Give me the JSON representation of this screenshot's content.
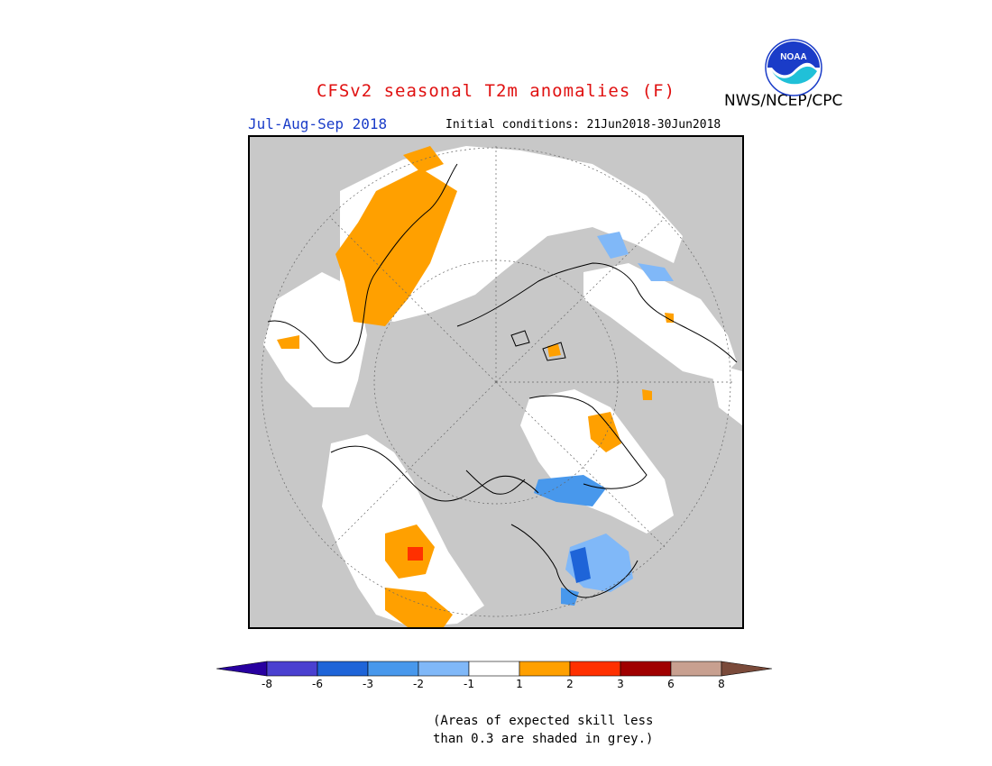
{
  "header": {
    "title": "CFSv2 seasonal T2m anomalies (F)",
    "period": "Jul-Aug-Sep 2018",
    "initial_conditions": "Initial conditions: 21Jun2018-30Jun2018",
    "agency": "NWS/NCEP/CPC",
    "logo_text": "NOAA"
  },
  "colors": {
    "skill_grey": "#c8c8c8",
    "neutral_white": "#ffffff",
    "warm_1_2": "#ffa000",
    "warm_2_3": "#ff3000",
    "cool_1_2": "#80b8f8",
    "cool_2_3": "#4898ec"
  },
  "legend": {
    "bins": [
      {
        "label": "-8",
        "color": "#2800a0"
      },
      {
        "label": "-6",
        "color": "#4a40d0"
      },
      {
        "label": "-3",
        "color": "#1e64d8"
      },
      {
        "label": "-2",
        "color": "#4898ec"
      },
      {
        "label": "-1",
        "color": "#80b8f8"
      },
      {
        "label": "1",
        "color": "#ffffff"
      },
      {
        "label": "2",
        "color": "#ffa000"
      },
      {
        "label": "3",
        "color": "#ff3000"
      },
      {
        "label": "6",
        "color": "#a00000"
      },
      {
        "label": "8",
        "color": "#c8a090"
      },
      {
        "label": "",
        "color": "#7a4a3a"
      }
    ],
    "note_line1": "(Areas of expected skill less",
    "note_line2": "than 0.3 are shaded in grey.)"
  }
}
